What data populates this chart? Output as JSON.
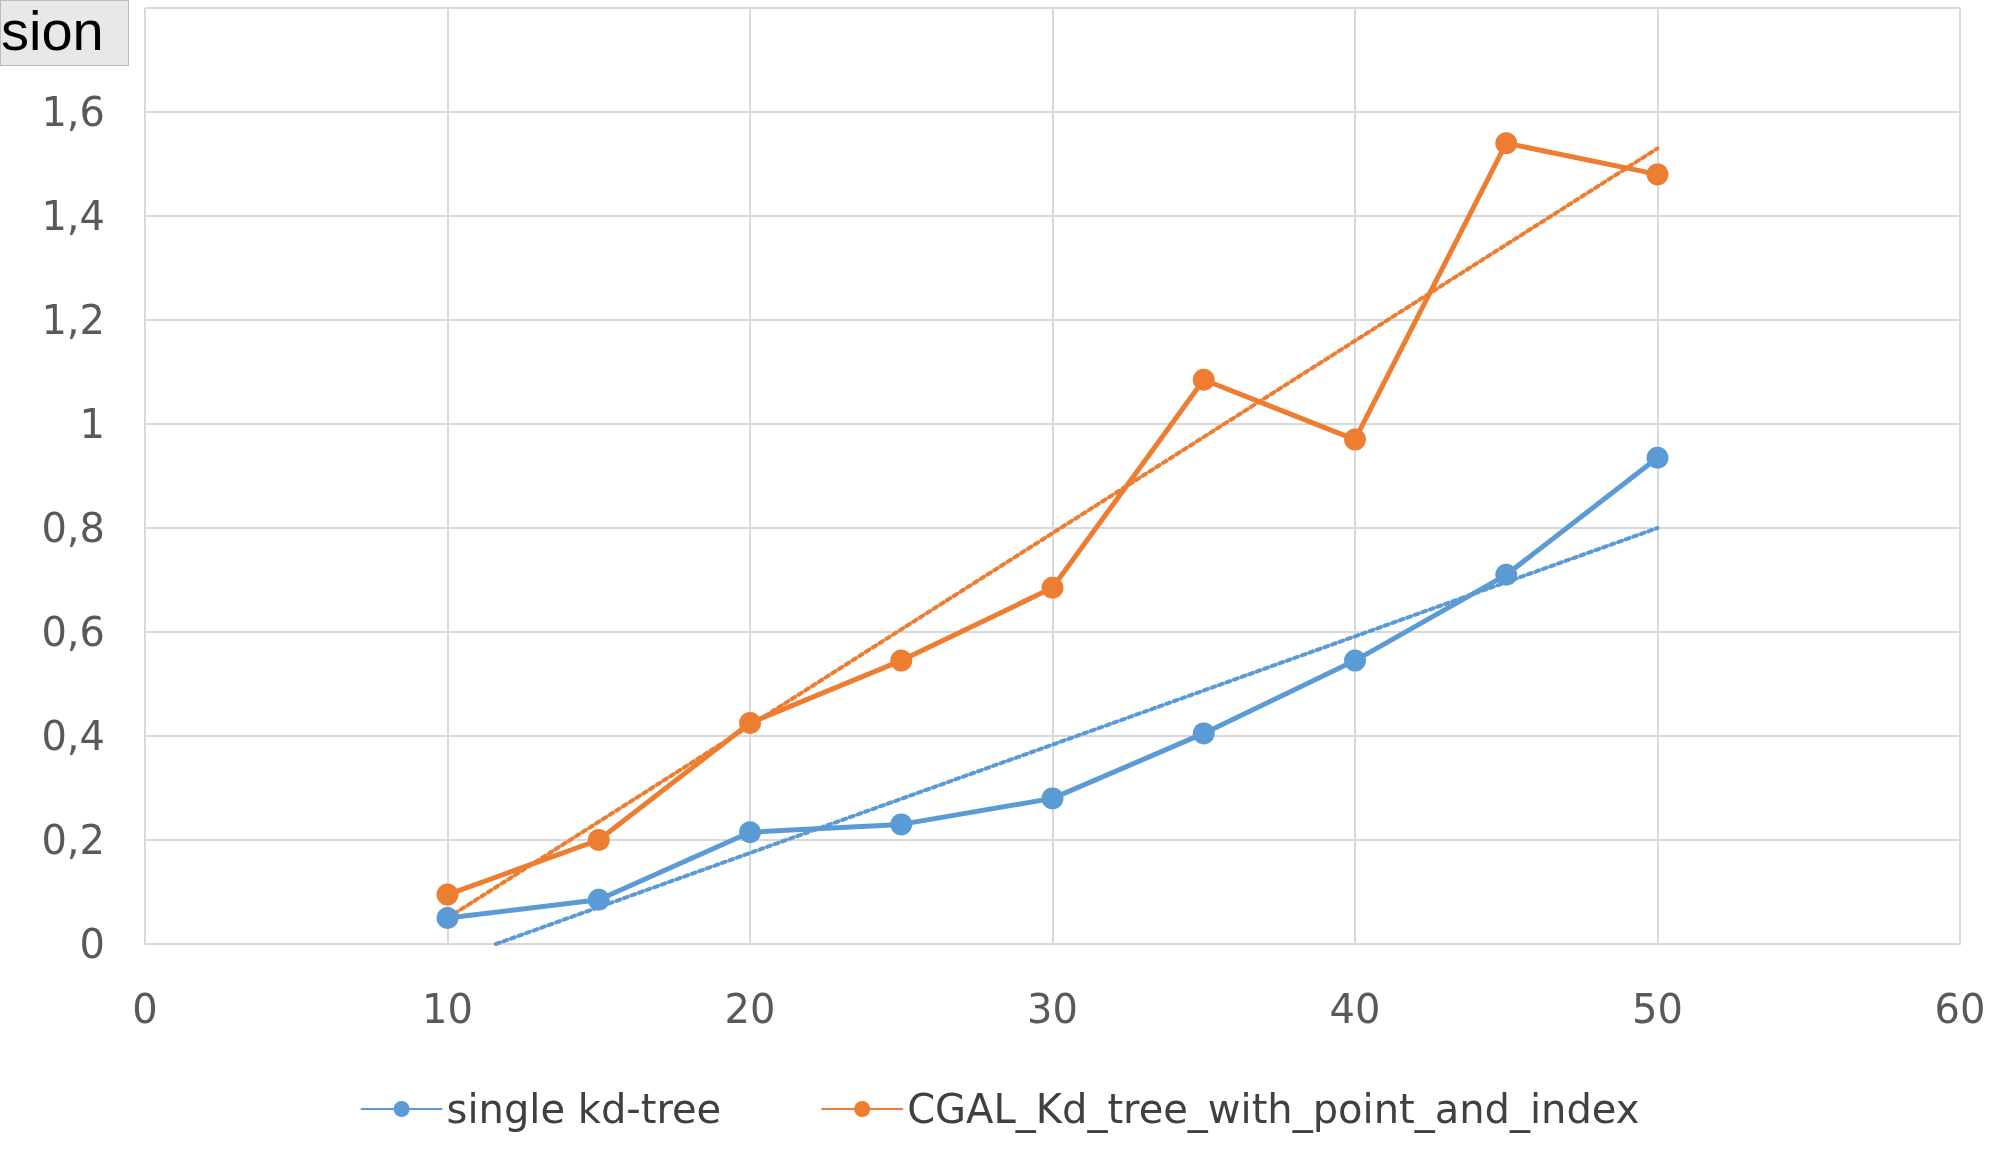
{
  "chart_data": {
    "type": "line",
    "title": "sion",
    "x": [
      10,
      15,
      20,
      25,
      30,
      35,
      40,
      45,
      50
    ],
    "series": [
      {
        "name": "single kd-tree",
        "color": "#5b9bd5",
        "values": [
          0.05,
          0.085,
          0.215,
          0.23,
          0.28,
          0.405,
          0.545,
          0.71,
          0.935
        ]
      },
      {
        "name": "CGAL_Kd_tree_with_point_and_index",
        "color": "#ed7d31",
        "values": [
          0.095,
          0.2,
          0.425,
          0.545,
          0.685,
          1.085,
          0.97,
          1.54,
          1.48
        ]
      },
      {
        "type": "line",
        "color": "#5b9bd5",
        "x": [
          11.6,
          50
        ],
        "values": [
          0,
          0.8
        ],
        "marker": "none",
        "line_style": "dotted"
      },
      {
        "type": "line",
        "color": "#ed7d31",
        "x": [
          10,
          50
        ],
        "values": [
          0.05,
          1.53
        ],
        "marker": "none",
        "line_style": "dotted"
      }
    ],
    "xlim": [
      0,
      60
    ],
    "xticks": [
      0,
      10,
      20,
      30,
      40,
      50,
      60
    ],
    "ylim": [
      0,
      1.8
    ],
    "yticks": [
      {
        "value": 0,
        "label": "0"
      },
      {
        "value": 0.2,
        "label": "0,2"
      },
      {
        "value": 0.4,
        "label": "0,4"
      },
      {
        "value": 0.6,
        "label": "0,6"
      },
      {
        "value": 0.8,
        "label": "0,8"
      },
      {
        "value": 1,
        "label": "1"
      },
      {
        "value": 1.2,
        "label": "1,2"
      },
      {
        "value": 1.4,
        "label": "1,4"
      },
      {
        "value": 1.6,
        "label": "1,6"
      },
      {
        "value": 1.8,
        "label": null
      }
    ],
    "grid": true,
    "legend": "bottom",
    "marker": "circle",
    "line_style": "solid"
  }
}
